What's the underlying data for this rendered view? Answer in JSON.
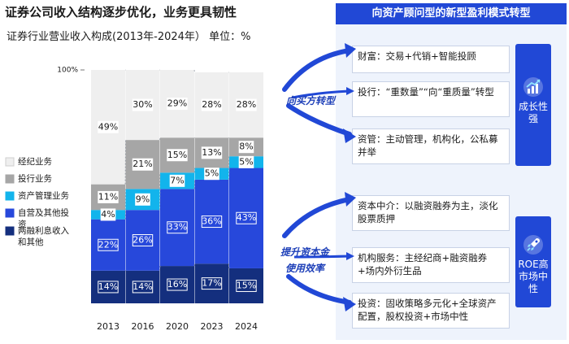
{
  "main_title": "证券公司收入结构逐步优化，业务更具韧性",
  "chart_title": "证券行业营业收入构成(2013年-2024年） 单位：%",
  "chart_data": {
    "type": "bar",
    "stacked": true,
    "title": "证券行业营业收入构成(2013年-2024年） 单位：%",
    "categories": [
      "2013",
      "2016",
      "2020",
      "2023",
      "2024"
    ],
    "ylim": [
      0,
      100
    ],
    "y_top_label": "100%",
    "series": [
      {
        "name": "两融利息收入和其他",
        "color": "#142f7e",
        "values": [
          14,
          14,
          16,
          17,
          15
        ],
        "labels": [
          "14%",
          "14%",
          "16%",
          "17%",
          "15%"
        ]
      },
      {
        "name": "自营及其他投资",
        "color": "#2748db",
        "values": [
          22,
          26,
          33,
          36,
          43
        ],
        "labels": [
          "22%",
          "26%",
          "33%",
          "36%",
          "43%"
        ]
      },
      {
        "name": "资产管理业务",
        "color": "#12b4ec",
        "values": [
          4,
          9,
          7,
          5,
          5
        ],
        "labels": [
          "4%",
          "9%",
          "7%",
          "5%",
          "5%"
        ]
      },
      {
        "name": "投行业务",
        "color": "#a6a6a6",
        "values": [
          11,
          21,
          15,
          13,
          8
        ],
        "labels": [
          "11%",
          "21%",
          "15%",
          "13%",
          "8%"
        ]
      },
      {
        "name": "经纪业务",
        "color": "#efefef",
        "values": [
          49,
          30,
          29,
          28,
          28
        ],
        "labels": [
          "49%",
          "30%",
          "29%",
          "28%",
          "28%"
        ]
      }
    ],
    "legend": {
      "position": "left",
      "order": [
        "经纪业务",
        "投行业务",
        "资产管理业务",
        "自营及其他投资",
        "两融利息收入和其他"
      ]
    }
  },
  "right": {
    "header": "向资产顾问型的新型盈利模式转型",
    "group1": {
      "arrow_label": "向买方转型",
      "side_label": [
        "成长性",
        "强"
      ],
      "items": [
        "财富：交易+代销+智能投顾",
        "投行：“重数量”“向“重质量”转型",
        "资管：主动管理，机构化，公私募并举"
      ]
    },
    "group2": {
      "arrow_label": [
        "提升资本金",
        "使用效率"
      ],
      "side_label": [
        "ROE高",
        "市场中",
        "性"
      ],
      "items": [
        "资本中介：以融资融券为主，淡化股票质押",
        "机构服务：主经纪商+融资融券+场内外衍生品",
        "投资：固收策略多元化+全球资产配置，股权投资+市场中性"
      ]
    },
    "colors": {
      "accent": "#2148d6",
      "panel": "#eef3fc"
    }
  }
}
